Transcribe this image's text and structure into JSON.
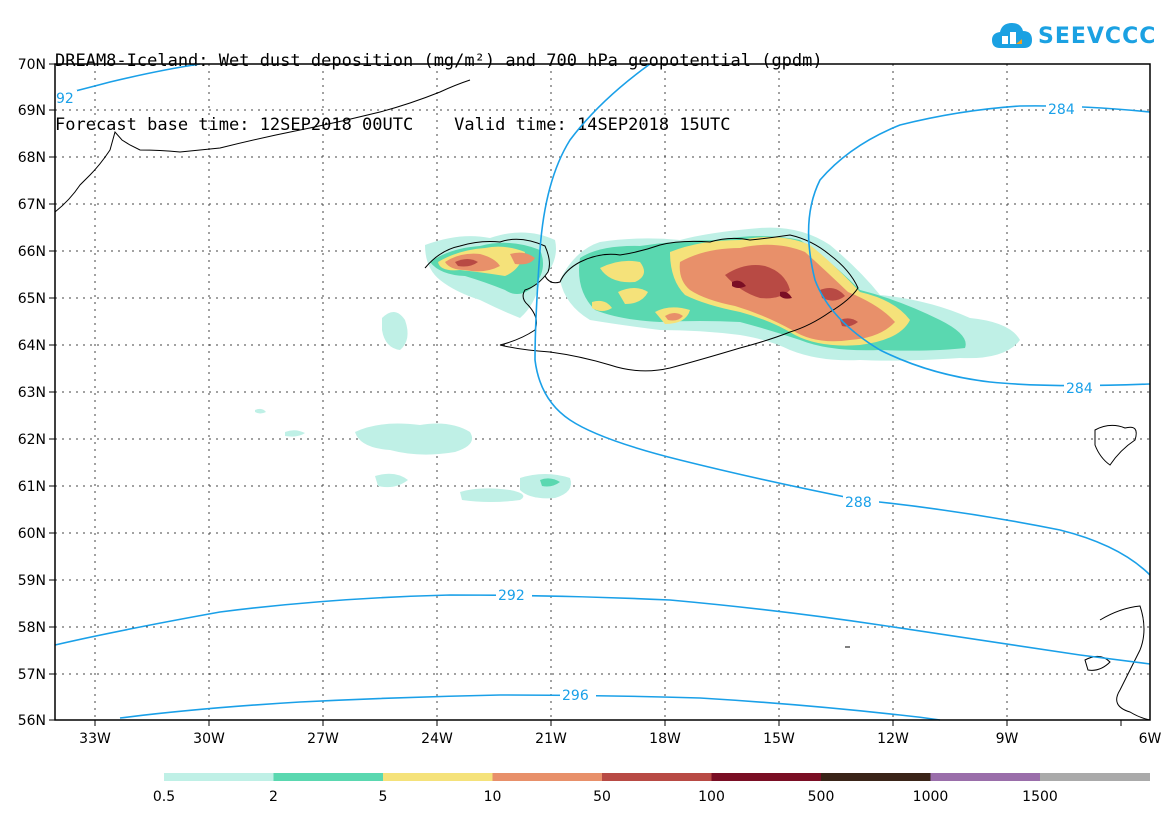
{
  "header": {
    "title_line1": "DREAM8-Iceland: Wet dust deposition (mg/m²) and 700 hPa geopotential (gpdm)",
    "title_line2": "Forecast base time: 12SEP2018 00UTC    Valid time: 14SEP2018 15UTC"
  },
  "logo": {
    "text": "SEEVCCC",
    "color": "#1ba1e2"
  },
  "map": {
    "lat_labels": [
      "70N",
      "69N",
      "68N",
      "67N",
      "66N",
      "65N",
      "64N",
      "63N",
      "62N",
      "61N",
      "60N",
      "59N",
      "58N",
      "57N",
      "56N"
    ],
    "lon_labels": [
      "33W",
      "30W",
      "27W",
      "24W",
      "21W",
      "18W",
      "15W",
      "12W",
      "9W",
      "6W"
    ],
    "contour_labels": [
      "92",
      "284",
      "284",
      "288",
      "292",
      "296"
    ],
    "contour_color": "#1aa0e8"
  },
  "legend": {
    "colors": [
      "#bff0e6",
      "#5ad8b0",
      "#f5e27a",
      "#e8906a",
      "#b84a44",
      "#7a0e24",
      "#3a2418",
      "#9a6eaa",
      "#aaaaaa"
    ],
    "labels": [
      "0.5",
      "2",
      "5",
      "10",
      "50",
      "100",
      "500",
      "1000",
      "1500"
    ]
  }
}
